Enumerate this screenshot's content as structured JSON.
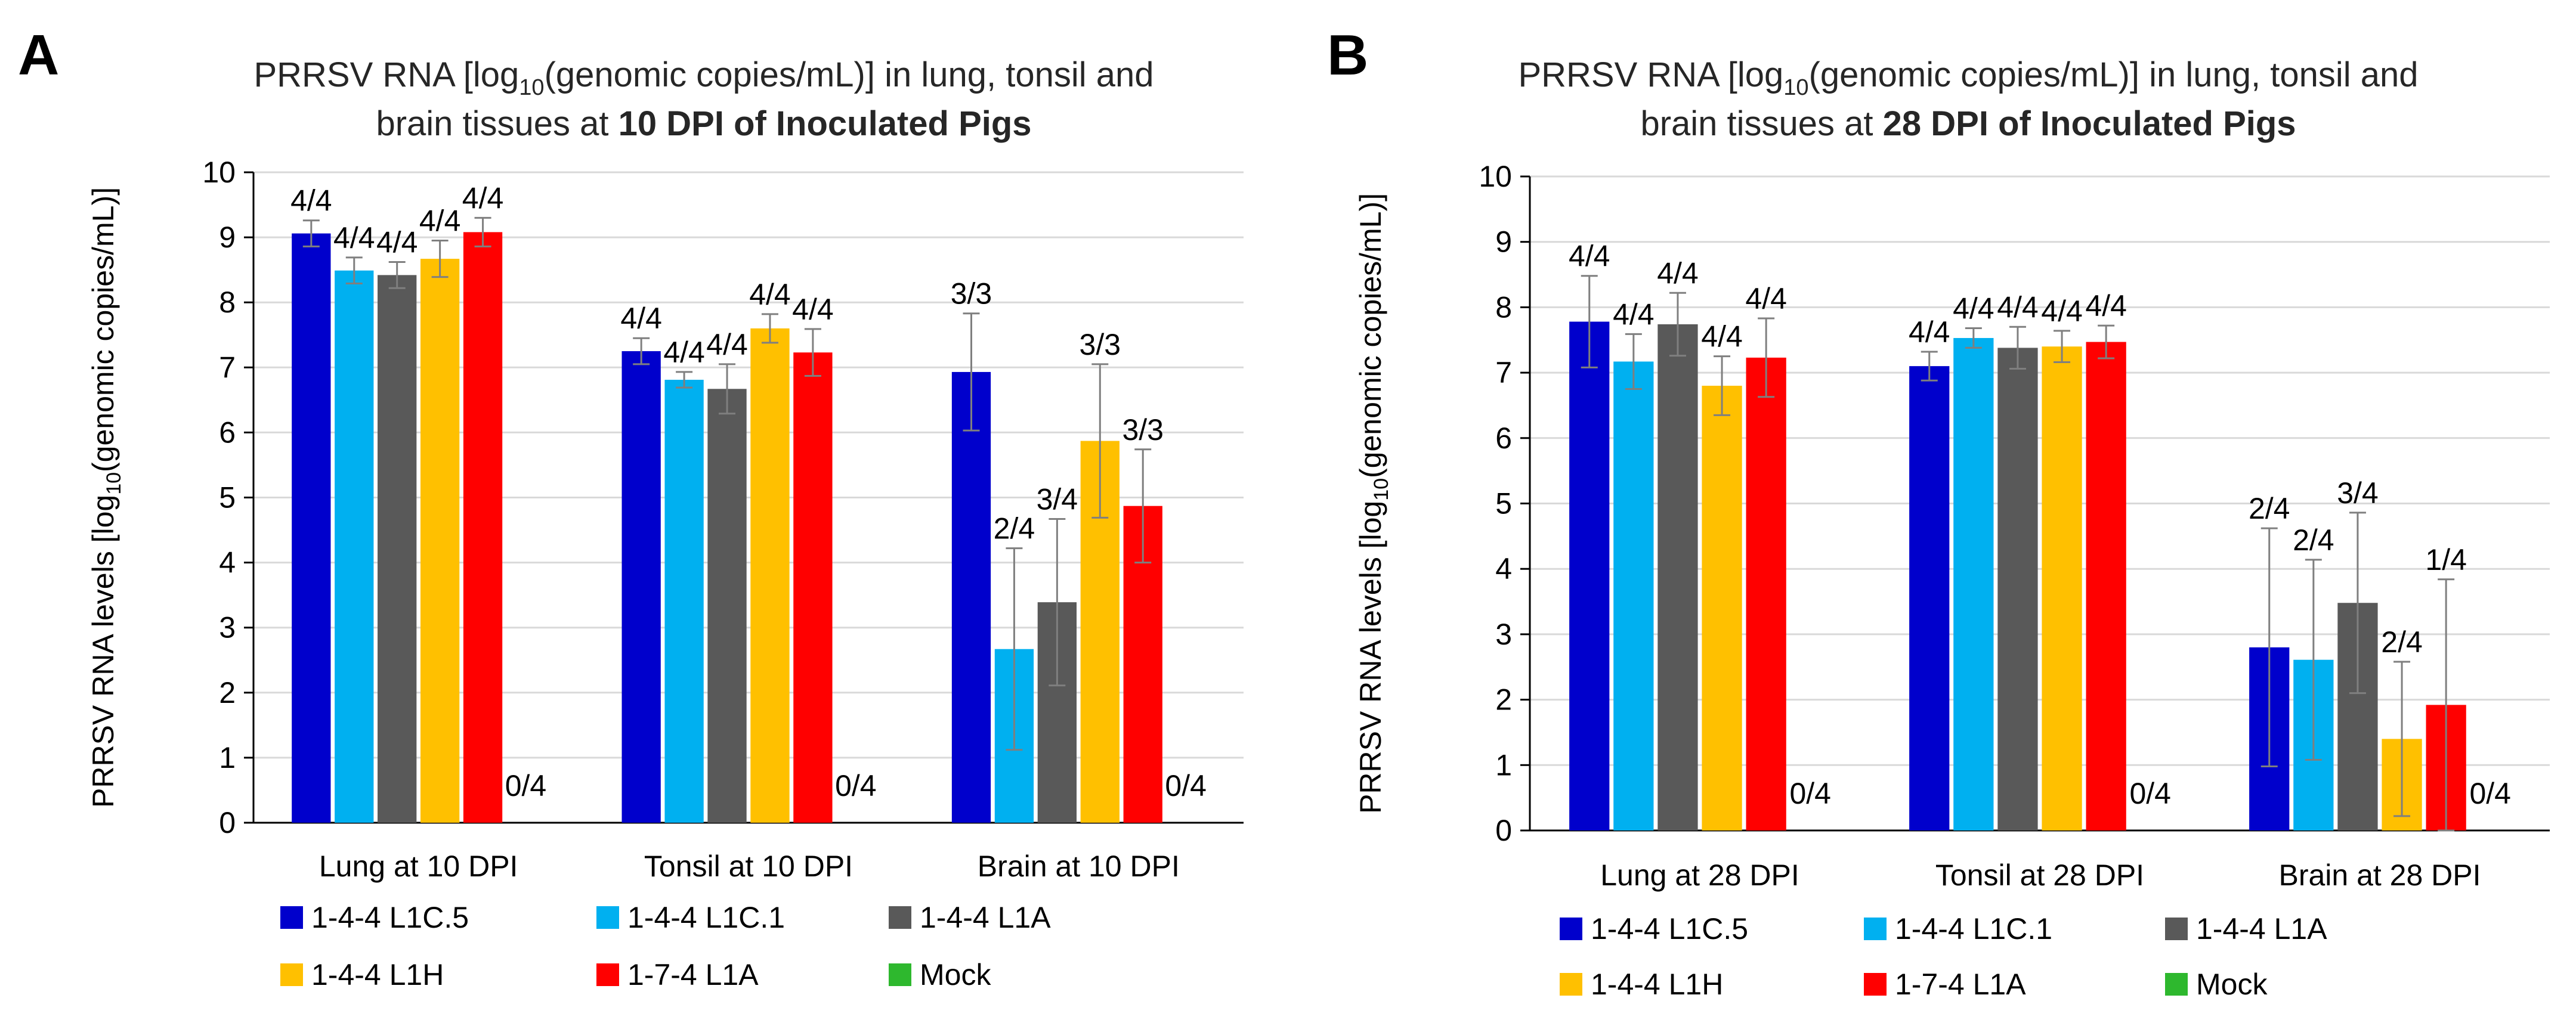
{
  "chart_data": [
    {
      "type": "bar",
      "panel_label": "A",
      "title": {
        "line1_pre": "PRRSV RNA [log",
        "line1_sub": "10",
        "line1_post": "(genomic copies/mL)] in lung, tonsil and",
        "line2_pre": "brain tissues at ",
        "line2_bold": "10 DPI of Inoculated Pigs"
      },
      "ylabel": {
        "pre": "PRRSV RNA levels [log",
        "sub": "10",
        "post": "(genomic copies/mL)]"
      },
      "ylim": [
        0,
        10
      ],
      "yticks": [
        "0",
        "1",
        "2",
        "3",
        "4",
        "5",
        "6",
        "7",
        "8",
        "9",
        "10"
      ],
      "categories": [
        "Lung at 10 DPI",
        "Tonsil at 10 DPI",
        "Brain at 10 DPI"
      ],
      "series": [
        {
          "name": "1-4-4 L1C.5",
          "color": "#0000CC",
          "values": [
            9.06,
            7.25,
            6.93
          ],
          "errors": [
            0.2,
            0.2,
            0.9
          ],
          "labels": [
            "4/4",
            "4/4",
            "3/3"
          ]
        },
        {
          "name": "1-4-4 L1C.1",
          "color": "#00B0F0",
          "values": [
            8.49,
            6.81,
            2.67
          ],
          "errors": [
            0.2,
            0.12,
            1.55
          ],
          "labels": [
            "4/4",
            "4/4",
            "2/4"
          ]
        },
        {
          "name": "1-4-4 L1A",
          "color": "#595959",
          "values": [
            8.42,
            6.67,
            3.39
          ],
          "errors": [
            0.2,
            0.38,
            1.28
          ],
          "labels": [
            "4/4",
            "4/4",
            "3/4"
          ]
        },
        {
          "name": "1-4-4 L1H",
          "color": "#FFC000",
          "values": [
            8.67,
            7.6,
            5.87
          ],
          "errors": [
            0.28,
            0.22,
            1.18
          ],
          "labels": [
            "4/4",
            "4/4",
            "3/3"
          ]
        },
        {
          "name": "1-7-4 L1A",
          "color": "#FF0000",
          "values": [
            9.08,
            7.23,
            4.87
          ],
          "errors": [
            0.22,
            0.36,
            0.87
          ],
          "labels": [
            "4/4",
            "4/4",
            "3/3"
          ]
        },
        {
          "name": "Mock",
          "color": "#2EB82E",
          "values": [
            0,
            0,
            0
          ],
          "errors": [
            0,
            0,
            0
          ],
          "labels": [
            "0/4",
            "0/4",
            "0/4"
          ]
        }
      ]
    },
    {
      "type": "bar",
      "panel_label": "B",
      "title": {
        "line1_pre": "PRRSV RNA [log",
        "line1_sub": "10",
        "line1_post": "(genomic copies/mL)] in lung, tonsil and",
        "line2_pre": "brain tissues at ",
        "line2_bold": "28 DPI of Inoculated Pigs"
      },
      "ylabel": {
        "pre": "PRRSV RNA levels [log",
        "sub": "10",
        "post": "(genomic copies/mL)]"
      },
      "ylim": [
        0,
        10
      ],
      "yticks": [
        "0",
        "1",
        "2",
        "3",
        "4",
        "5",
        "6",
        "7",
        "8",
        "9",
        "10"
      ],
      "categories": [
        "Lung at 28 DPI",
        "Tonsil at 28 DPI",
        "Brain at 28 DPI"
      ],
      "series": [
        {
          "name": "1-4-4 L1C.5",
          "color": "#0000CC",
          "values": [
            7.78,
            7.1,
            2.8
          ],
          "errors": [
            0.7,
            0.22,
            1.82
          ],
          "labels": [
            "4/4",
            "4/4",
            "2/4"
          ]
        },
        {
          "name": "1-4-4 L1C.1",
          "color": "#00B0F0",
          "values": [
            7.17,
            7.53,
            2.61
          ],
          "errors": [
            0.42,
            0.15,
            1.53
          ],
          "labels": [
            "4/4",
            "4/4",
            "2/4"
          ]
        },
        {
          "name": "1-4-4 L1A",
          "color": "#595959",
          "values": [
            7.74,
            7.38,
            3.48
          ],
          "errors": [
            0.48,
            0.32,
            1.38
          ],
          "labels": [
            "4/4",
            "4/4",
            "3/4"
          ]
        },
        {
          "name": "1-4-4 L1H",
          "color": "#FFC000",
          "values": [
            6.8,
            7.4,
            1.4
          ],
          "errors": [
            0.45,
            0.24,
            1.18
          ],
          "labels": [
            "4/4",
            "4/4",
            "2/4"
          ]
        },
        {
          "name": "1-7-4 L1A",
          "color": "#FF0000",
          "values": [
            7.23,
            7.47,
            1.92
          ],
          "errors": [
            0.6,
            0.25,
            1.92
          ],
          "labels": [
            "4/4",
            "4/4",
            "1/4"
          ]
        },
        {
          "name": "Mock",
          "color": "#2EB82E",
          "values": [
            0,
            0,
            0
          ],
          "errors": [
            0,
            0,
            0
          ],
          "labels": [
            "0/4",
            "0/4",
            "0/4"
          ]
        }
      ]
    }
  ]
}
